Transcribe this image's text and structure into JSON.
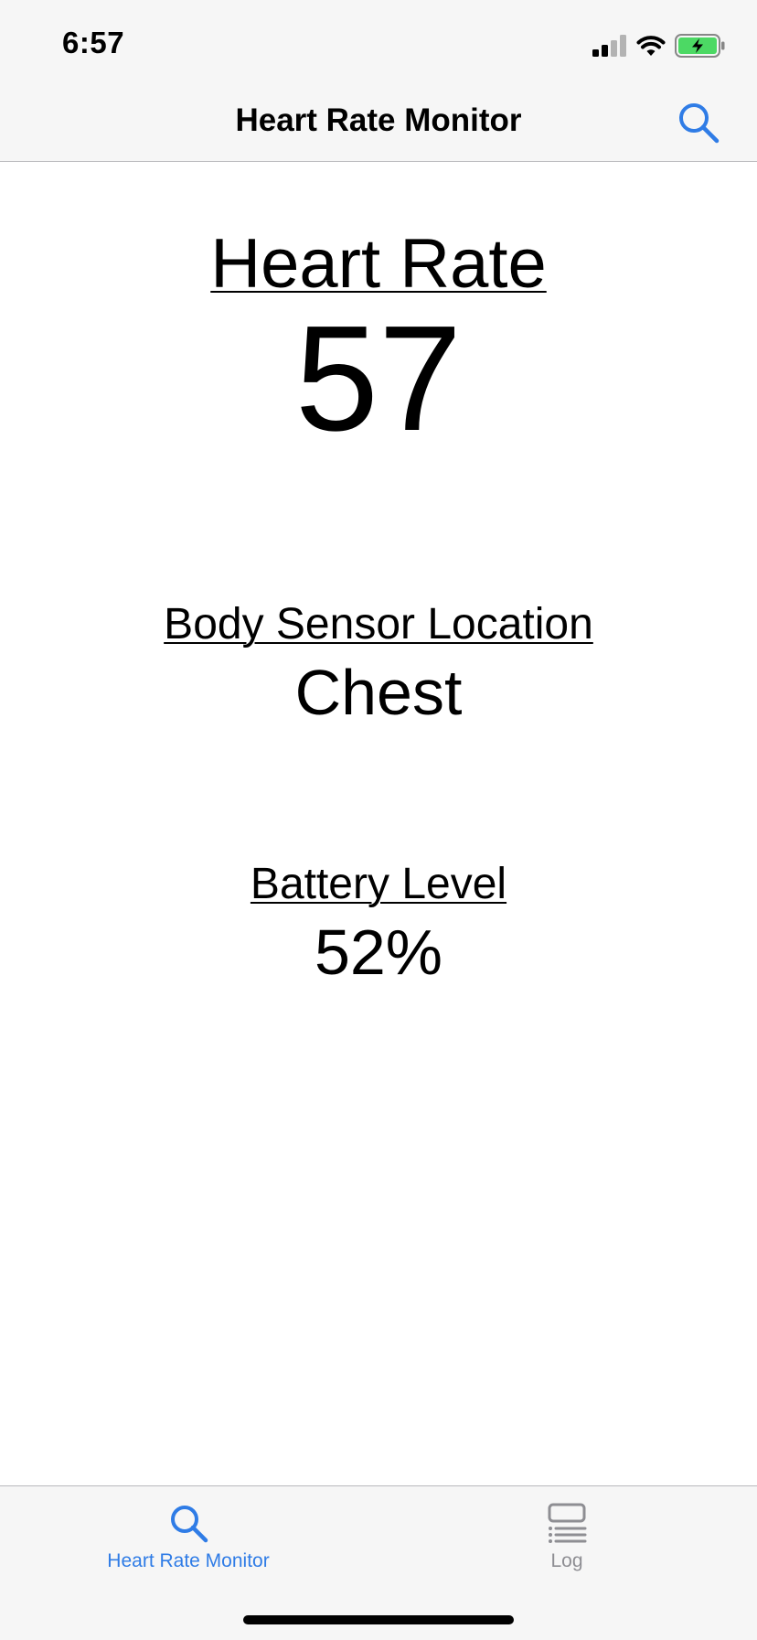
{
  "status_bar": {
    "time": "6:57",
    "icons": [
      "cellular-signal-icon",
      "wifi-icon",
      "battery-charging-icon"
    ]
  },
  "nav": {
    "title": "Heart Rate Monitor",
    "search_icon": "search-icon"
  },
  "metrics": {
    "heart_rate": {
      "label": "Heart Rate",
      "value": "57"
    },
    "body_sensor_location": {
      "label": "Body Sensor Location",
      "value": "Chest"
    },
    "battery_level": {
      "label": "Battery Level",
      "value": "52%"
    }
  },
  "tabs": [
    {
      "label": "Heart Rate Monitor",
      "icon": "search-icon",
      "selected": true
    },
    {
      "label": "Log",
      "icon": "log-icon",
      "selected": false
    }
  ],
  "colors": {
    "accent": "#2f7ce6",
    "inactive_tab": "#8e8e93",
    "bar_background": "#f6f6f6",
    "battery_fill": "#4cd964"
  }
}
